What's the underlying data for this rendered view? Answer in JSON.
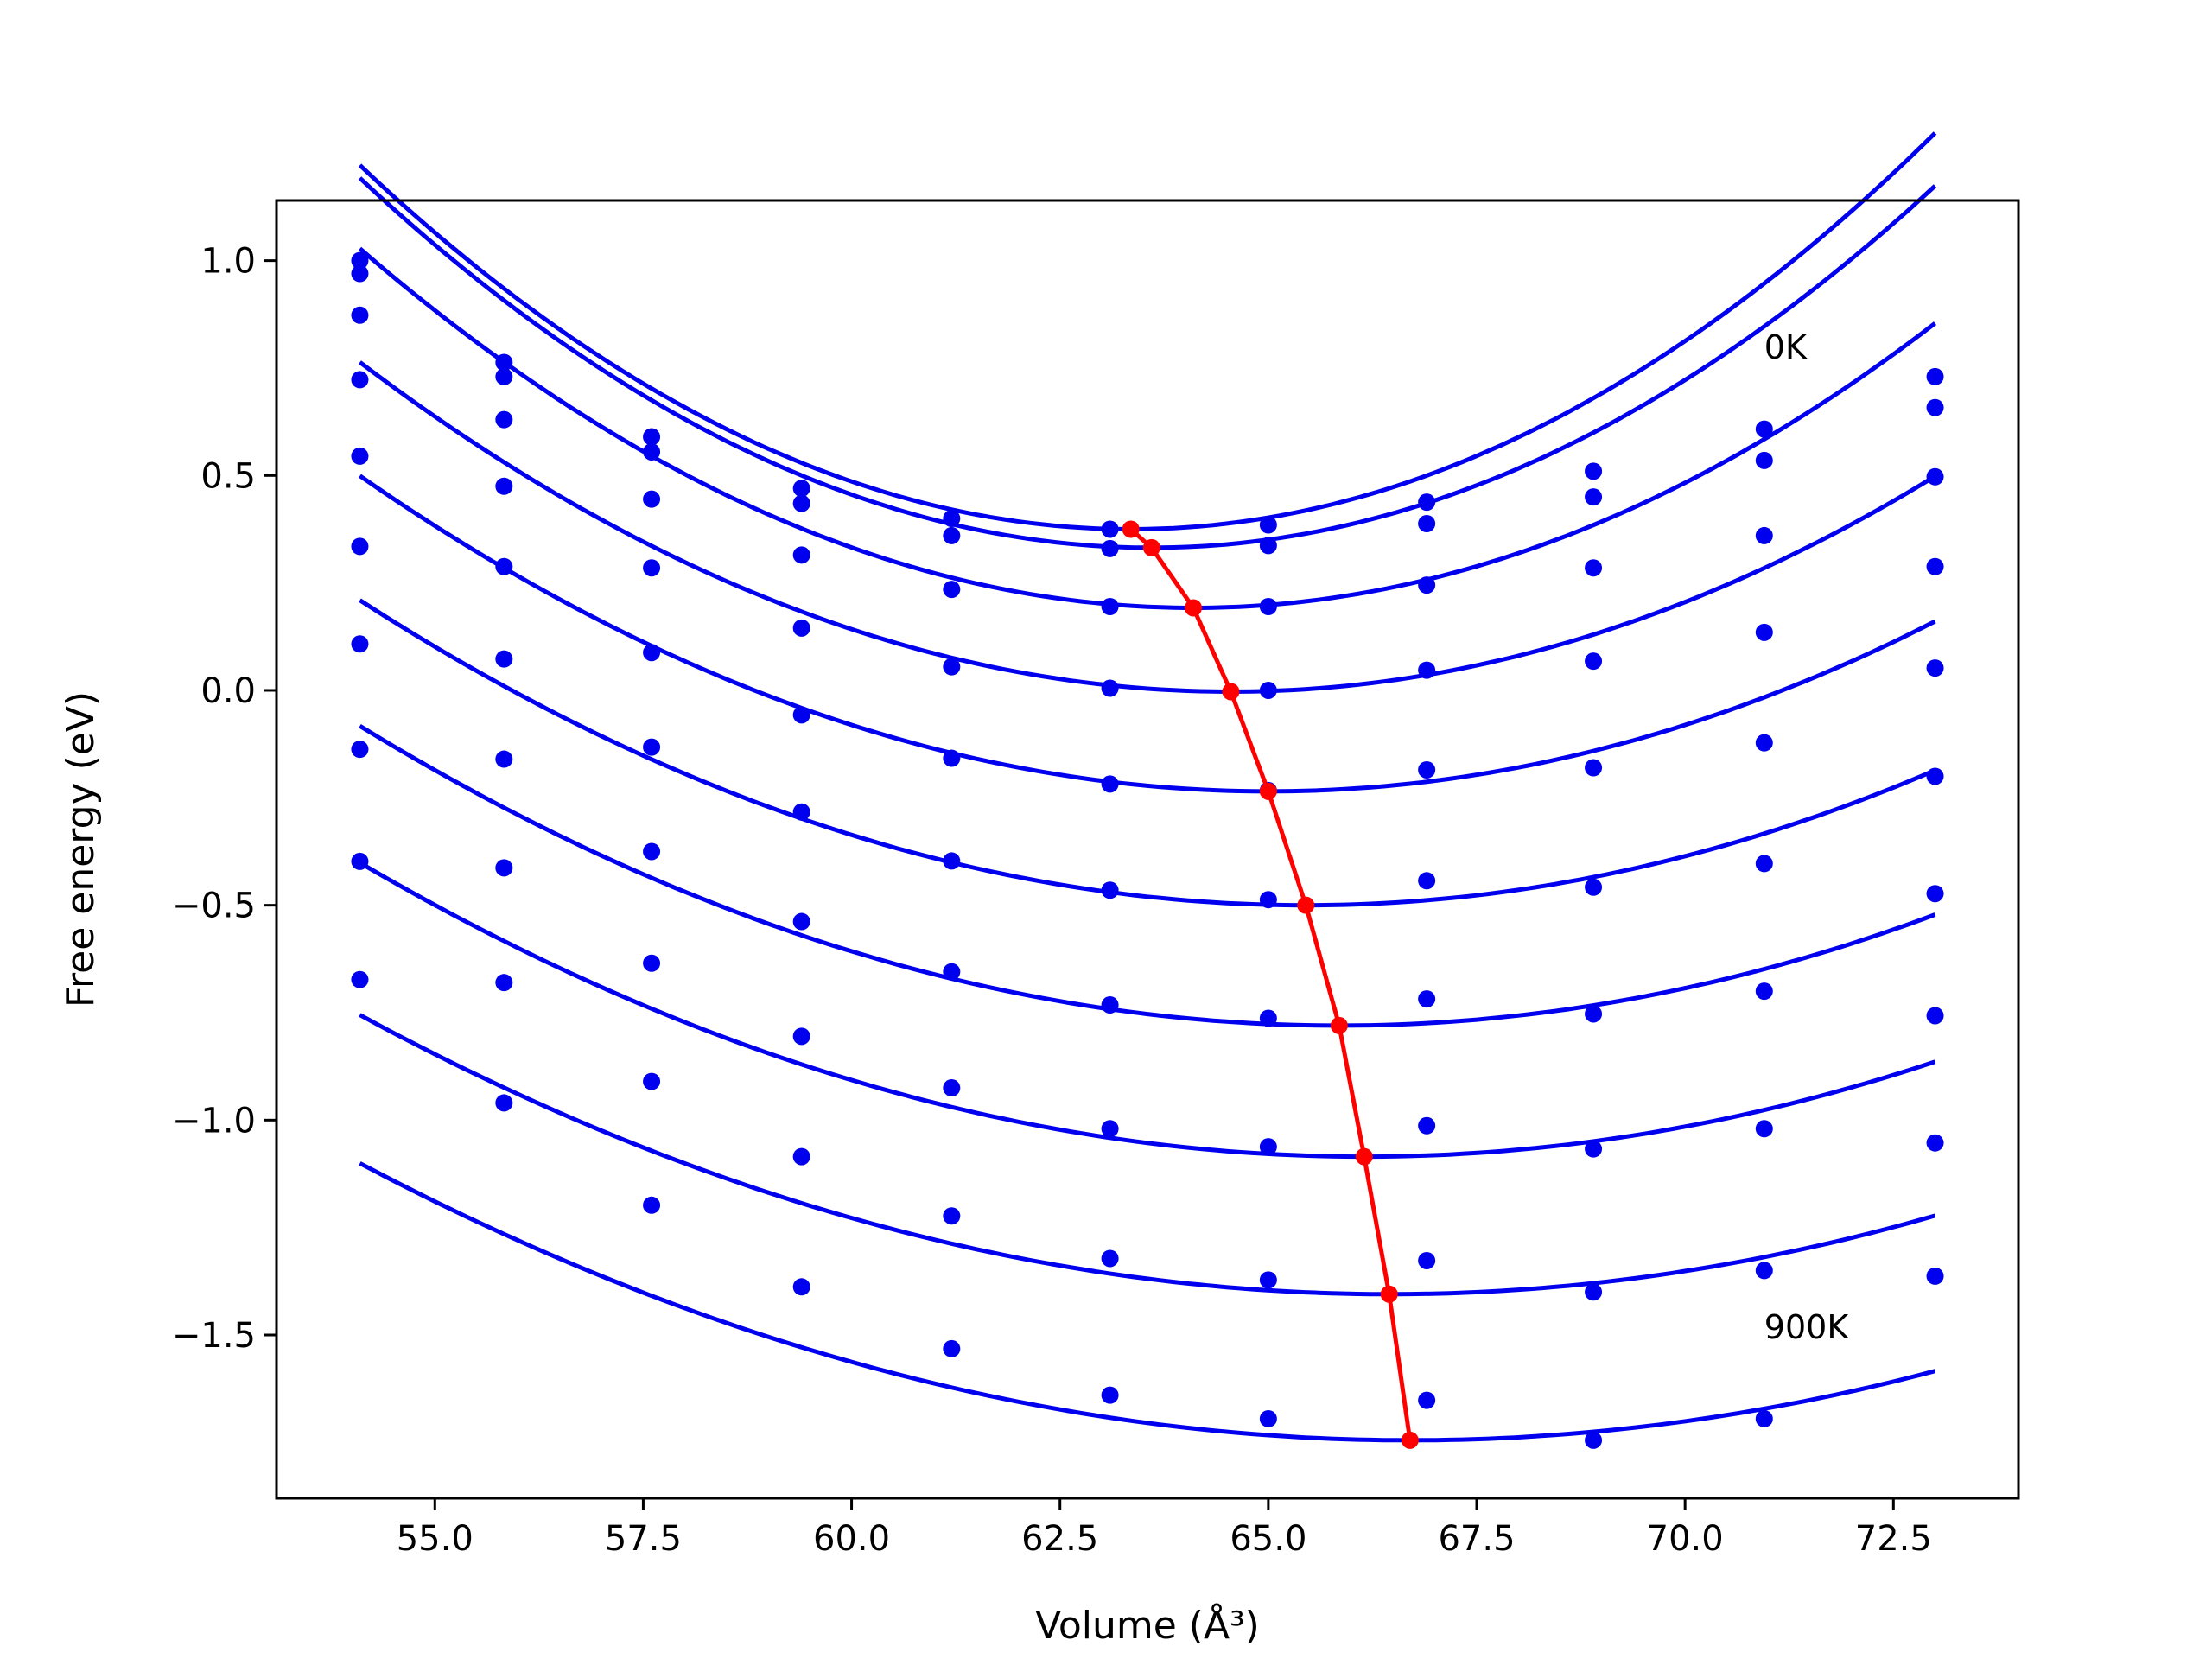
{
  "chart_data": {
    "type": "line",
    "xlabel": "Volume (Å³)",
    "ylabel": "Free energy (eV)",
    "xlim": [
      53.1,
      74.0
    ],
    "ylim": [
      -1.88,
      1.14
    ],
    "xticks": [
      55.0,
      57.5,
      60.0,
      62.5,
      65.0,
      67.5,
      70.0,
      72.5
    ],
    "xtick_labels": [
      "55.0",
      "57.5",
      "60.0",
      "62.5",
      "65.0",
      "67.5",
      "70.0",
      "72.5"
    ],
    "yticks": [
      1.0,
      0.5,
      0.0,
      -0.5,
      -1.0,
      -1.5
    ],
    "ytick_labels": [
      "1.0",
      "0.5",
      "0.0",
      "−0.5",
      "−1.0",
      "−1.5"
    ],
    "grid": false,
    "annotations": [
      {
        "text": "0K",
        "x": 70.95,
        "y": 0.8
      },
      {
        "text": "900K",
        "x": 70.95,
        "y": -1.48
      }
    ],
    "colors": {
      "curves": "#0000ee",
      "minima": "#ff0000"
    },
    "volumes": [
      54.1,
      55.83,
      57.6,
      59.4,
      61.2,
      63.1,
      65.0,
      66.9,
      68.9,
      70.95,
      73.0
    ],
    "series": [
      {
        "points": [
          1.0,
          0.763,
          0.59,
          0.47,
          0.4,
          0.375,
          0.385,
          0.438,
          0.51,
          0.608,
          0.73
        ],
        "fit": {
          "a": 0.0099,
          "v0": 63.35,
          "f0": 0.375
        }
      },
      {
        "points": [
          0.97,
          0.73,
          0.555,
          0.435,
          0.36,
          0.33,
          0.337,
          0.388,
          0.45,
          0.535,
          0.658
        ],
        "fit": {
          "a": 0.00953,
          "v0": 63.6,
          "f0": 0.332
        }
      },
      {
        "points": [
          0.873,
          0.63,
          0.445,
          0.315,
          0.235,
          0.195,
          0.195,
          0.245,
          0.285,
          0.36,
          0.497
        ],
        "fit": {
          "a": 0.00836,
          "v0": 64.1,
          "f0": 0.192
        }
      },
      {
        "points": [
          0.723,
          0.475,
          0.285,
          0.145,
          0.055,
          0.005,
          0.0,
          0.047,
          0.068,
          0.135,
          0.288
        ],
        "fit": {
          "a": 0.00702,
          "v0": 64.55,
          "f0": -0.003
        }
      },
      {
        "points": [
          0.545,
          0.288,
          0.088,
          -0.057,
          -0.158,
          -0.218,
          -0.233,
          -0.185,
          -0.18,
          -0.122,
          0.052
        ],
        "fit": {
          "a": 0.00618,
          "v0": 65.0,
          "f0": -0.235
        }
      },
      {
        "points": [
          0.335,
          0.073,
          -0.132,
          -0.283,
          -0.397,
          -0.465,
          -0.487,
          -0.443,
          -0.458,
          -0.403,
          -0.2
        ],
        "fit": {
          "a": 0.00551,
          "v0": 65.45,
          "f0": -0.5
        }
      },
      {
        "points": [
          0.108,
          -0.16,
          -0.375,
          -0.538,
          -0.655,
          -0.732,
          -0.763,
          -0.718,
          -0.753,
          -0.7,
          -0.473
        ],
        "fit": {
          "a": 0.00505,
          "v0": 65.85,
          "f0": -0.78
        }
      },
      {
        "points": [
          -0.137,
          -0.413,
          -0.635,
          -0.805,
          -0.925,
          -1.02,
          -1.062,
          -1.013,
          -1.067,
          -1.02,
          -0.757
        ],
        "fit": {
          "a": 0.00471,
          "v0": 66.15,
          "f0": -1.085
        }
      },
      {
        "points": [
          -0.398,
          -0.68,
          -0.91,
          -1.085,
          -1.223,
          -1.322,
          -1.372,
          -1.327,
          -1.4,
          -1.35,
          -1.053
        ],
        "fit": {
          "a": 0.00426,
          "v0": 66.45,
          "f0": -1.405
        }
      },
      {
        "points": [
          -0.673,
          -0.96,
          -1.198,
          -1.388,
          -1.532,
          -1.64,
          -1.695,
          -1.652,
          -1.745,
          -1.695,
          -1.363
        ],
        "fit": {
          "a": 0.00406,
          "v0": 66.7,
          "f0": -1.745
        }
      }
    ],
    "minima": {
      "x": [
        63.35,
        63.6,
        64.1,
        64.55,
        65.0,
        65.45,
        65.85,
        66.15,
        66.45,
        66.7
      ],
      "y": [
        0.375,
        0.332,
        0.192,
        -0.003,
        -0.235,
        -0.5,
        -0.78,
        -1.085,
        -1.405,
        -1.745
      ]
    }
  }
}
